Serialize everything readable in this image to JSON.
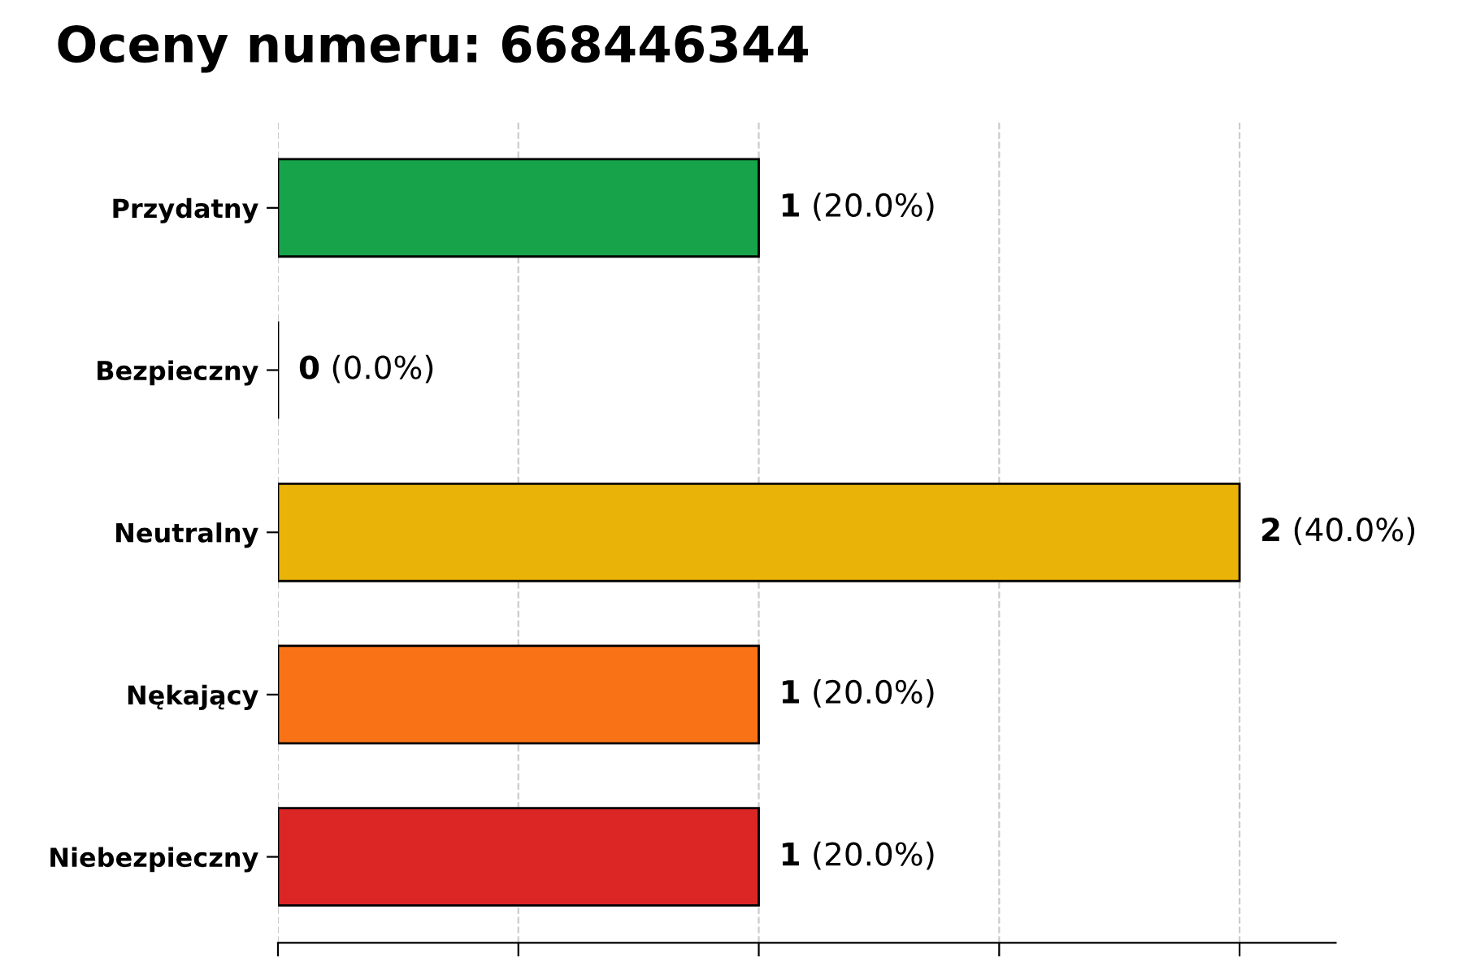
{
  "chart_data": {
    "type": "bar",
    "orientation": "horizontal",
    "title": "Oceny numeru: 668446344",
    "categories": [
      "Przydatny",
      "Bezpieczny",
      "Neutralny",
      "Nękający",
      "Niebezpieczny"
    ],
    "values": [
      1,
      0,
      2,
      1,
      1
    ],
    "colors": [
      "#16a34a",
      "#000000",
      "#eab308",
      "#f97316",
      "#dc2626"
    ],
    "value_labels": [
      "1 (20.0%)",
      "0 (0.0%)",
      "2 (40.0%)",
      "1 (20.0%)",
      "1 (20.0%)"
    ],
    "xlim": [
      0,
      2.2
    ],
    "xticks": [
      {
        "value": 0,
        "label": null
      },
      {
        "value": 0.5,
        "label": null
      },
      {
        "value": 1,
        "label": null
      },
      {
        "value": 1.5,
        "label": null
      },
      {
        "value": 2,
        "label": null
      }
    ],
    "grid": "x",
    "tick_labels": "y"
  }
}
